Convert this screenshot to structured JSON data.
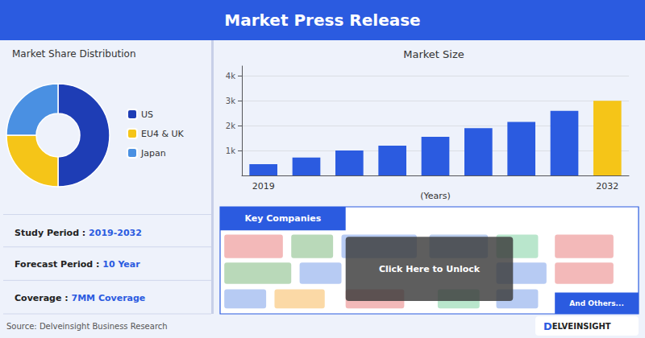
{
  "title": "Market Press Release",
  "annotations": [
    "Source: Delveinsight Business Research",
    "D",
    "ELVEINSIGHT"
  ],
  "chart_data": [
    {
      "type": "pie",
      "title": "Market Share Distribution",
      "categories": [
        "US",
        "EU4 & UK",
        "Japan"
      ],
      "values": [
        50,
        25,
        25
      ],
      "colors": [
        "#1e3db5",
        "#f5c518",
        "#4a90e2"
      ],
      "legend": "right",
      "annotations": [
        "Study Period : 2019-2032",
        "Forecast Period : 10 Year",
        "Coverage : 7MM Coverage"
      ]
    },
    {
      "type": "bar",
      "title": "Market Size",
      "categories": [
        "2019",
        null,
        null,
        null,
        null,
        null,
        null,
        null,
        "2032"
      ],
      "values": [
        450,
        720,
        1000,
        1200,
        1550,
        1900,
        2150,
        2600,
        3000
      ],
      "colors": [
        "#2b5be0",
        "#2b5be0",
        "#2b5be0",
        "#2b5be0",
        "#2b5be0",
        "#2b5be0",
        "#2b5be0",
        "#2b5be0",
        "#f5c518"
      ],
      "xlabel": "(Years)",
      "ylim": [
        0,
        4400
      ],
      "yticks": [
        {
          "value": 1000,
          "label": "1k"
        },
        {
          "value": 2000,
          "label": "2k"
        },
        {
          "value": 3000,
          "label": "3k"
        },
        {
          "value": 4000,
          "label": "4k"
        }
      ],
      "grid": true,
      "annotations": [
        "Key Companies",
        "Click Here to Unlock",
        "And Others..."
      ]
    }
  ]
}
